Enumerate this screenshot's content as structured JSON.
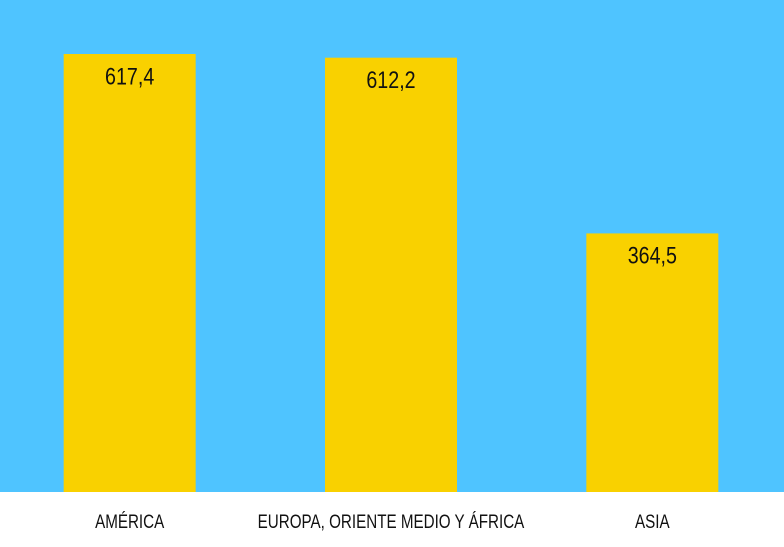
{
  "chart_data": {
    "type": "bar",
    "categories": [
      "AMÉRICA",
      "EUROPA, ORIENTE MEDIO Y ÁFRICA",
      "ASIA"
    ],
    "values": [
      617.4,
      612.2,
      364.5
    ],
    "value_labels": [
      "617,4",
      "612,2",
      "364,5"
    ],
    "color": "#f9d100",
    "background": "#4fc4ff"
  }
}
